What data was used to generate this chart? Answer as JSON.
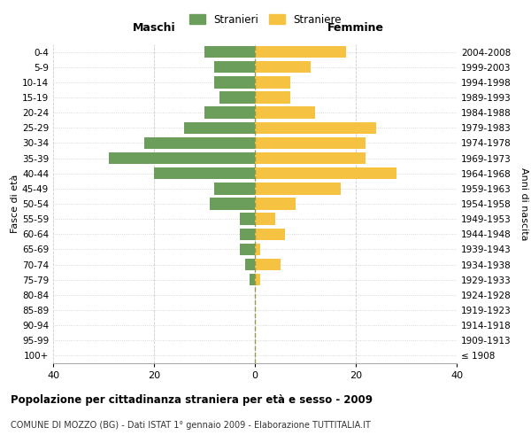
{
  "age_groups": [
    "100+",
    "95-99",
    "90-94",
    "85-89",
    "80-84",
    "75-79",
    "70-74",
    "65-69",
    "60-64",
    "55-59",
    "50-54",
    "45-49",
    "40-44",
    "35-39",
    "30-34",
    "25-29",
    "20-24",
    "15-19",
    "10-14",
    "5-9",
    "0-4"
  ],
  "birth_years": [
    "≤ 1908",
    "1909-1913",
    "1914-1918",
    "1919-1923",
    "1924-1928",
    "1929-1933",
    "1934-1938",
    "1939-1943",
    "1944-1948",
    "1949-1953",
    "1954-1958",
    "1959-1963",
    "1964-1968",
    "1969-1973",
    "1974-1978",
    "1979-1983",
    "1984-1988",
    "1989-1993",
    "1994-1998",
    "1999-2003",
    "2004-2008"
  ],
  "males": [
    0,
    0,
    0,
    0,
    0,
    1,
    2,
    3,
    3,
    3,
    9,
    8,
    20,
    29,
    22,
    14,
    10,
    7,
    8,
    8,
    10
  ],
  "females": [
    0,
    0,
    0,
    0,
    0,
    1,
    5,
    1,
    6,
    4,
    8,
    17,
    28,
    22,
    22,
    24,
    12,
    7,
    7,
    11,
    18
  ],
  "male_color": "#6a9e5a",
  "female_color": "#f5c242",
  "background_color": "#ffffff",
  "grid_color": "#cccccc",
  "title": "Popolazione per cittadinanza straniera per età e sesso - 2009",
  "subtitle": "COMUNE DI MOZZO (BG) - Dati ISTAT 1° gennaio 2009 - Elaborazione TUTTITALIA.IT",
  "ylabel_left": "Fasce di età",
  "ylabel_right": "Anni di nascita",
  "legend_male": "Stranieri",
  "legend_female": "Straniere",
  "xlim": 40,
  "header_maschi": "Maschi",
  "header_femmine": "Femmine"
}
